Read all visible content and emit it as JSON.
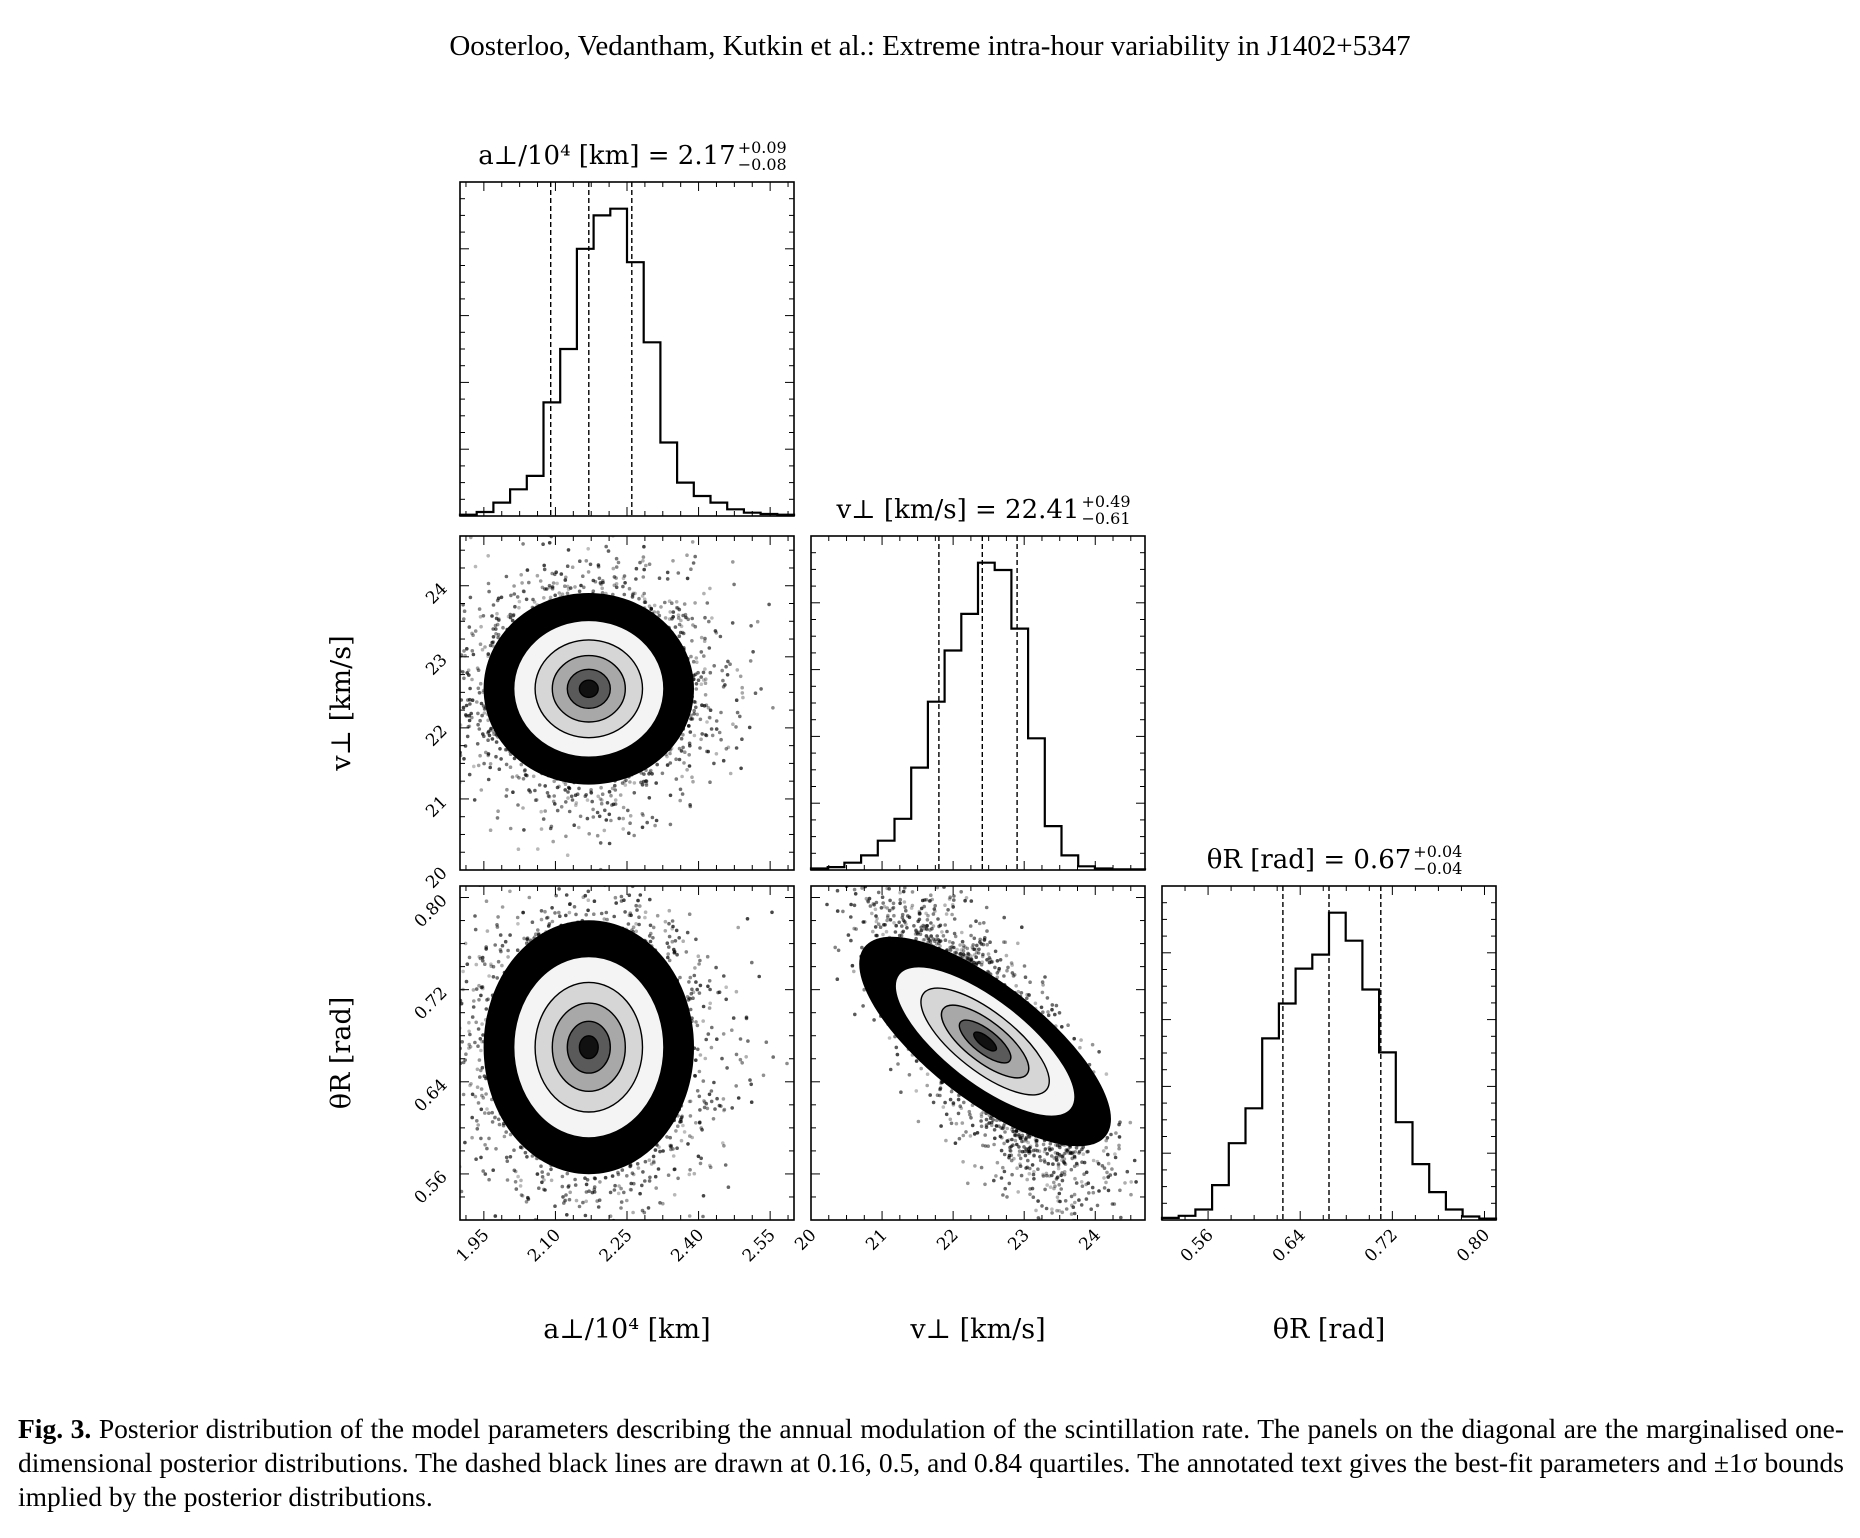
{
  "header": {
    "running_title": "Oosterloo, Vedantham, Kutkin et al.: Extreme intra-hour variability in J1402+5347"
  },
  "caption": {
    "label": "Fig. 3.",
    "text": "Posterior distribution of the model parameters describing the annual modulation of the scintillation rate. The panels on the diagonal are the marginalised one-dimensional posterior distributions. The dashed black lines are drawn at 0.16, 0.5, and 0.84 quartiles. The annotated text gives the best-fit parameters and ±1σ bounds implied by the posterior distributions."
  },
  "chart_data": {
    "type": "corner",
    "parameters": [
      {
        "symbol": "a⊥/10⁴ [km]",
        "label_text": "a⊥/10⁴ [km]",
        "title_prefix": "a⊥/10⁴ [km] = 2.17",
        "median": 2.17,
        "plus": "+0.09",
        "minus": "−0.08",
        "quantiles": [
          2.09,
          2.17,
          2.26
        ],
        "range": [
          1.9,
          2.6
        ],
        "ticks": [
          "1.95",
          "2.10",
          "2.25",
          "2.40",
          "2.55"
        ],
        "tick_values": [
          1.95,
          2.1,
          2.25,
          2.4,
          2.55
        ],
        "hist_edges": [
          1.9,
          2.6
        ],
        "hist_values": [
          0.2,
          0.6,
          2,
          4,
          6,
          17,
          25,
          40,
          45,
          46,
          38,
          26,
          11,
          5,
          3,
          2,
          1,
          0.5,
          0.3,
          0.2
        ]
      },
      {
        "symbol": "v⊥ [km/s]",
        "label_text": "v⊥ [km/s]",
        "title_prefix": "v⊥ [km/s] = 22.41",
        "median": 22.41,
        "plus": "+0.49",
        "minus": "−0.61",
        "quantiles": [
          21.8,
          22.41,
          22.9
        ],
        "range": [
          20.0,
          24.7
        ],
        "ticks": [
          "20",
          "21",
          "22",
          "23",
          "24"
        ],
        "tick_values": [
          20,
          21,
          22,
          23,
          24
        ],
        "hist_edges": [
          20.0,
          24.7
        ],
        "hist_values": [
          0.2,
          0.4,
          1,
          2,
          4,
          7,
          14,
          23,
          30,
          35,
          42,
          41,
          33,
          18,
          6,
          2,
          0.5,
          0.2,
          0.1,
          0.1
        ]
      },
      {
        "symbol": "θR [rad]",
        "label_text": "θR [rad]",
        "title_prefix": "θR [rad] = 0.67",
        "median": 0.67,
        "plus": "+0.04",
        "minus": "−0.04",
        "quantiles": [
          0.625,
          0.665,
          0.71
        ],
        "range": [
          0.52,
          0.81
        ],
        "ticks": [
          "0.56",
          "0.64",
          "0.72",
          "0.80"
        ],
        "tick_values": [
          0.56,
          0.64,
          0.72,
          0.8
        ],
        "hist_edges": [
          0.52,
          0.81
        ],
        "hist_values": [
          0.3,
          0.6,
          1.5,
          5,
          11,
          16,
          26,
          31,
          36,
          38,
          44,
          40,
          33,
          24,
          14,
          8,
          4,
          1.5,
          0.5,
          0.2
        ]
      }
    ],
    "joint": [
      {
        "x_param": 0,
        "y_param": 1,
        "cx": 2.17,
        "cy": 22.55,
        "sx": 0.09,
        "sy": 0.55,
        "rho": 0.0
      },
      {
        "x_param": 0,
        "y_param": 2,
        "cx": 2.17,
        "cy": 0.67,
        "sx": 0.09,
        "sy": 0.045,
        "rho": 0.0
      },
      {
        "x_param": 1,
        "y_param": 2,
        "cx": 22.45,
        "cy": 0.675,
        "sx": 0.55,
        "sy": 0.045,
        "rho": -0.75
      }
    ]
  }
}
